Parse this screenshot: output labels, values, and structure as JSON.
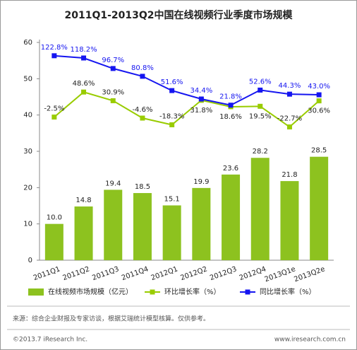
{
  "chart_data": {
    "type": "bar",
    "title": "2011Q1-2013Q2中国在线视频行业季度市场规模",
    "categories": [
      "2011Q1",
      "2011Q2",
      "2011Q3",
      "2011Q4",
      "2012Q1",
      "2012Q2",
      "2012Q3",
      "2012Q4",
      "2013Q1e",
      "2013Q2e"
    ],
    "ylim": [
      0,
      60
    ],
    "yticks": [
      0,
      10,
      20,
      30,
      40,
      50,
      60
    ],
    "y2lim": [
      -295,
      150
    ],
    "series": [
      {
        "name": "在线视频市场规模（亿元）",
        "type": "bar",
        "color": "#8dc21f",
        "values": [
          10.0,
          14.8,
          19.4,
          18.5,
          15.1,
          19.9,
          23.6,
          28.2,
          21.8,
          28.5
        ],
        "value_labels": [
          "10.0",
          "14.8",
          "19.4",
          "18.5",
          "15.1",
          "19.9",
          "23.6",
          "28.2",
          "21.8",
          "28.5"
        ]
      },
      {
        "name": "环比增长率（%）",
        "type": "line",
        "axis": "y2",
        "color": "#99cc00",
        "values": [
          -2.5,
          48.6,
          30.9,
          -4.6,
          -18.3,
          31.8,
          18.6,
          19.5,
          -22.7,
          30.6
        ],
        "value_labels": [
          "-2.5%",
          "48.6%",
          "30.9%",
          "-4.6%",
          "-18.3%",
          "31.8%",
          "18.6%",
          "19.5%",
          "-22.7%",
          "30.6%"
        ]
      },
      {
        "name": "同比增长率（%）",
        "type": "line",
        "axis": "y2",
        "color": "#1515f0",
        "values": [
          122.8,
          118.2,
          96.7,
          80.8,
          51.6,
          34.4,
          21.8,
          52.6,
          44.3,
          43.0
        ],
        "value_labels": [
          "122.8%",
          "118.2%",
          "96.7%",
          "80.8%",
          "51.6%",
          "34.4%",
          "21.8%",
          "52.6%",
          "44.3%",
          "43.0%"
        ]
      }
    ]
  },
  "source": "来源：综合企业财报及专家访谈，根据艾瑞统计模型核算。仅供参考。",
  "copyright": "©2013.7 iResearch Inc.",
  "website": "www.iresearch.com.cn"
}
